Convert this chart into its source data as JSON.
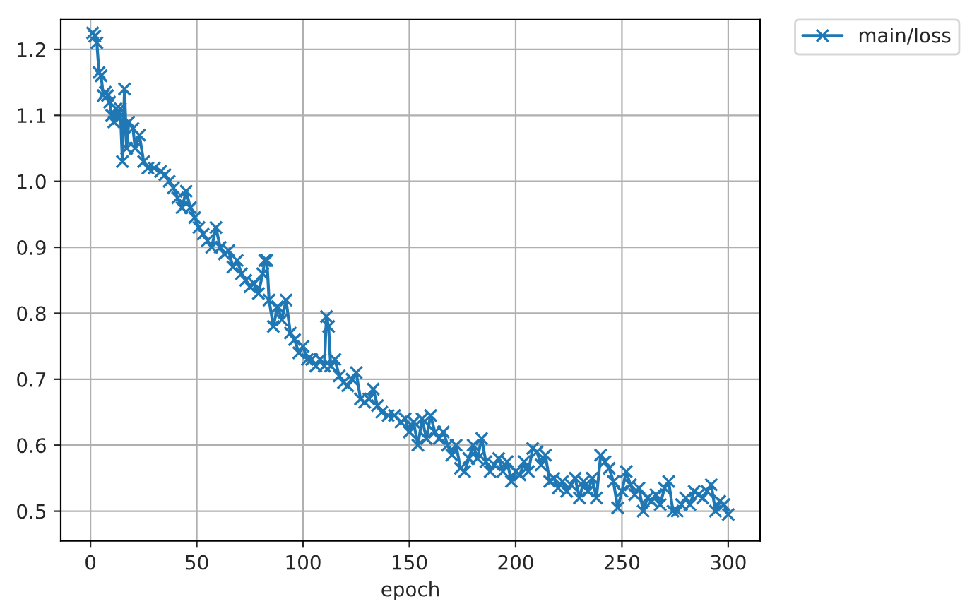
{
  "chart_data": {
    "type": "line",
    "xlabel": "epoch",
    "x": [
      1,
      2,
      3,
      4,
      5,
      6,
      7,
      8,
      9,
      10,
      11,
      12,
      13,
      14,
      15,
      16,
      17,
      18,
      20,
      21,
      23,
      25,
      27,
      30,
      33,
      35,
      37,
      39,
      41,
      43,
      45,
      47,
      49,
      51,
      53,
      55,
      57,
      59,
      61,
      63,
      65,
      67,
      69,
      71,
      73,
      75,
      77,
      79,
      81,
      82,
      83,
      84,
      86,
      88,
      90,
      92,
      94,
      96,
      98,
      100,
      102,
      104,
      106,
      108,
      110,
      111,
      112,
      113,
      115,
      117,
      119,
      121,
      123,
      125,
      127,
      129,
      131,
      133,
      135,
      137,
      140,
      143,
      146,
      148,
      150,
      152,
      154,
      156,
      158,
      160,
      162,
      164,
      166,
      168,
      170,
      172,
      174,
      176,
      178,
      180,
      182,
      184,
      186,
      188,
      190,
      192,
      194,
      196,
      198,
      200,
      202,
      204,
      206,
      208,
      210,
      212,
      214,
      216,
      218,
      220,
      222,
      224,
      226,
      228,
      230,
      232,
      234,
      236,
      238,
      240,
      242,
      244,
      246,
      248,
      250,
      252,
      254,
      256,
      258,
      260,
      262,
      264,
      266,
      268,
      270,
      272,
      274,
      276,
      278,
      280,
      282,
      284,
      286,
      288,
      290,
      292,
      294,
      296,
      298,
      300
    ],
    "series": [
      {
        "name": "main/loss",
        "color": "#1f77b4",
        "values": [
          1.225,
          1.22,
          1.21,
          1.165,
          1.16,
          1.13,
          1.135,
          1.13,
          1.12,
          1.1,
          1.09,
          1.11,
          1.095,
          1.11,
          1.03,
          1.14,
          1.05,
          1.09,
          1.08,
          1.05,
          1.07,
          1.03,
          1.02,
          1.02,
          1.015,
          1.01,
          1.0,
          0.99,
          0.975,
          0.96,
          0.985,
          0.96,
          0.945,
          0.93,
          0.92,
          0.91,
          0.9,
          0.93,
          0.9,
          0.89,
          0.895,
          0.87,
          0.88,
          0.86,
          0.85,
          0.84,
          0.845,
          0.83,
          0.86,
          0.88,
          0.88,
          0.82,
          0.78,
          0.81,
          0.79,
          0.82,
          0.77,
          0.76,
          0.74,
          0.75,
          0.73,
          0.73,
          0.72,
          0.73,
          0.72,
          0.795,
          0.78,
          0.72,
          0.73,
          0.705,
          0.695,
          0.69,
          0.7,
          0.71,
          0.67,
          0.665,
          0.67,
          0.685,
          0.66,
          0.65,
          0.645,
          0.645,
          0.635,
          0.64,
          0.62,
          0.635,
          0.6,
          0.64,
          0.61,
          0.645,
          0.62,
          0.61,
          0.62,
          0.6,
          0.585,
          0.6,
          0.565,
          0.56,
          0.58,
          0.6,
          0.58,
          0.61,
          0.575,
          0.56,
          0.57,
          0.58,
          0.56,
          0.575,
          0.545,
          0.56,
          0.555,
          0.575,
          0.56,
          0.595,
          0.59,
          0.57,
          0.585,
          0.545,
          0.55,
          0.535,
          0.545,
          0.53,
          0.54,
          0.55,
          0.52,
          0.545,
          0.53,
          0.55,
          0.52,
          0.585,
          0.575,
          0.565,
          0.545,
          0.505,
          0.53,
          0.56,
          0.54,
          0.525,
          0.535,
          0.5,
          0.52,
          0.515,
          0.525,
          0.51,
          0.535,
          0.545,
          0.5,
          0.5,
          0.51,
          0.52,
          0.51,
          0.53,
          0.525,
          0.52,
          0.53,
          0.54,
          0.5,
          0.515,
          0.51,
          0.495
        ]
      }
    ],
    "xlim": [
      -14,
      315
    ],
    "ylim": [
      0.455,
      1.245
    ],
    "xticks": [
      0,
      50,
      100,
      150,
      200,
      250,
      300
    ],
    "yticks": [
      {
        "value": 0.5,
        "label": "0.5"
      },
      {
        "value": 0.6,
        "label": "0.6"
      },
      {
        "value": 0.7,
        "label": "0.7"
      },
      {
        "value": 0.8,
        "label": "0.8"
      },
      {
        "value": 0.9,
        "label": "0.9"
      },
      {
        "value": 1.0,
        "label": "1.0"
      },
      {
        "value": 1.1,
        "label": "1.1"
      },
      {
        "value": 1.2,
        "label": "1.2"
      }
    ],
    "grid": true,
    "legend": "top right",
    "marker": "cross",
    "line_style": "solid"
  }
}
